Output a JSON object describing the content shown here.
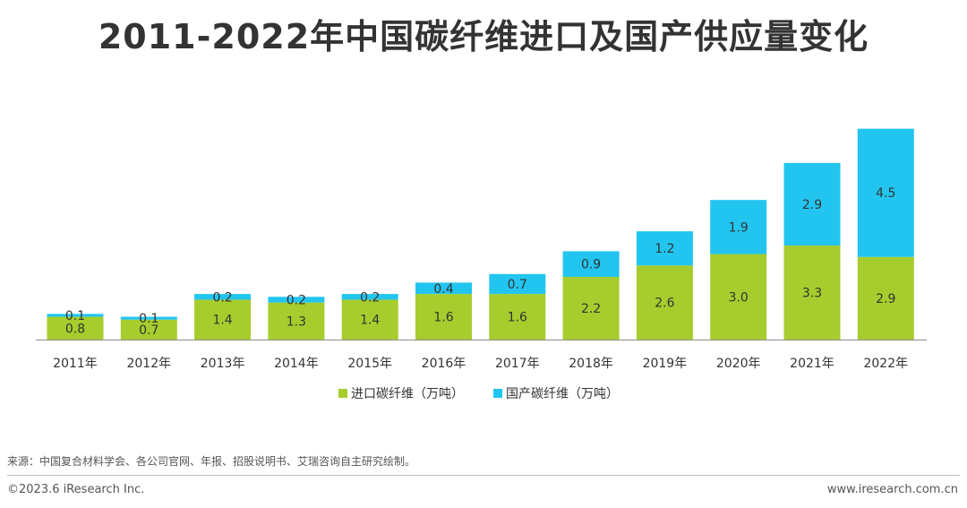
{
  "title": "2011-2022年中国碳纤维进口及国产供应量变化",
  "footer": {
    "source": "来源：中国复合材料学会、各公司官网、年报、招股说明书、艾瑞咨询自主研究绘制。",
    "copyright": "©2023.6 iResearch Inc.",
    "website": "www.iresearch.com.cn"
  },
  "chart_data": {
    "type": "bar",
    "stacked": true,
    "categories": [
      "2011年",
      "2012年",
      "2013年",
      "2014年",
      "2015年",
      "2016年",
      "2017年",
      "2018年",
      "2019年",
      "2020年",
      "2021年",
      "2022年"
    ],
    "series": [
      {
        "name": "进口碳纤维（万吨）",
        "color": "#a6cd2d",
        "values": [
          0.8,
          0.7,
          1.4,
          1.3,
          1.4,
          1.6,
          1.6,
          2.2,
          2.6,
          3.0,
          3.3,
          2.9
        ]
      },
      {
        "name": "国产碳纤维（万吨）",
        "color": "#22c5ef",
        "values": [
          0.1,
          0.1,
          0.2,
          0.2,
          0.2,
          0.4,
          0.7,
          0.9,
          1.2,
          1.9,
          2.9,
          4.5
        ]
      }
    ],
    "legend_position": "bottom",
    "grid": false,
    "y_axis_visible": false
  }
}
